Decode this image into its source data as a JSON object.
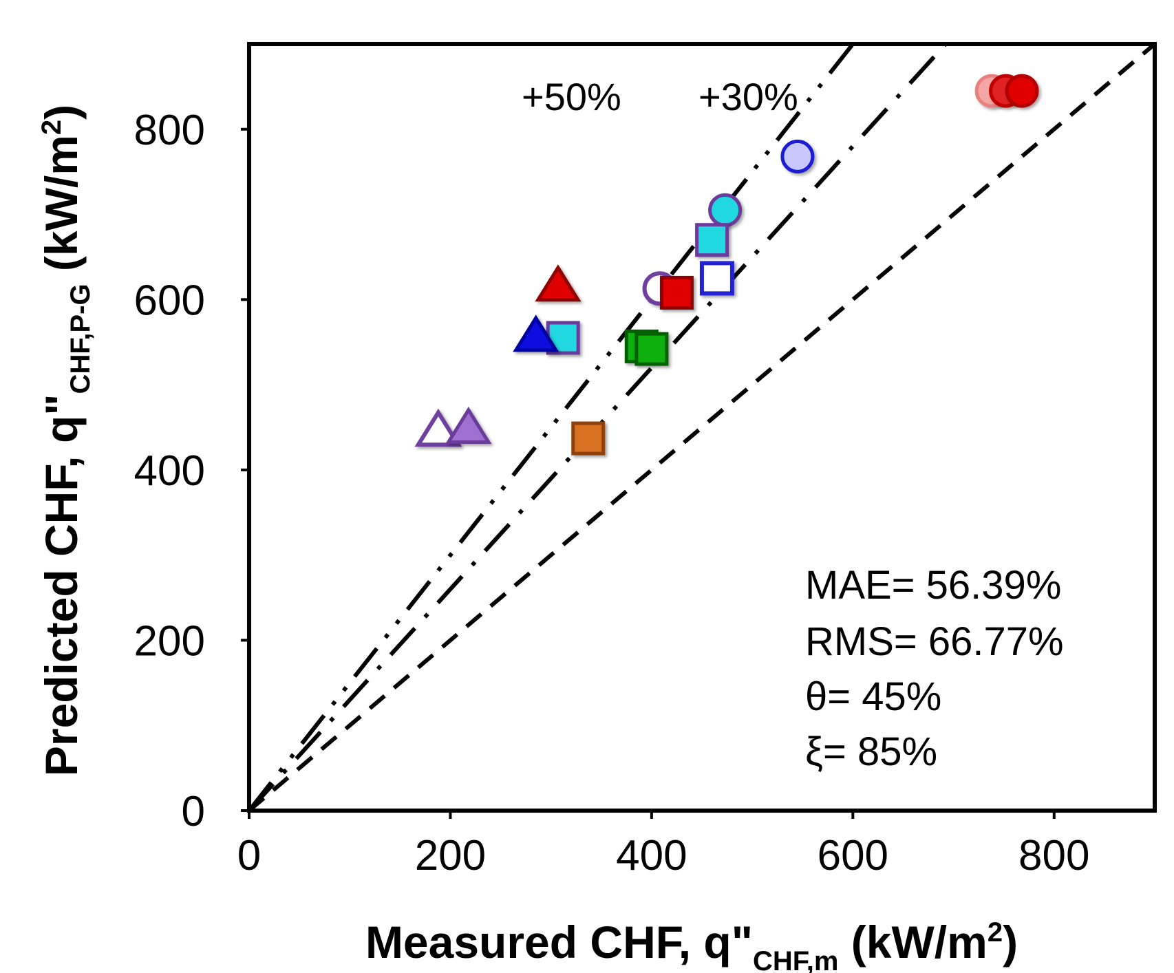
{
  "chart_data": {
    "type": "scatter",
    "xlabel": {
      "main": "Measured CHF, q\"",
      "sub": "CHF,m",
      "unit_pre": " (kW/m",
      "unit_sup": "2",
      "unit_post": ")"
    },
    "ylabel": {
      "main": "Predicted CHF, q\"",
      "sub": "CHF,P-G",
      "unit_pre": " (kW/m",
      "unit_sup": "2",
      "unit_post": ")"
    },
    "xlim": [
      0,
      900
    ],
    "ylim": [
      0,
      900
    ],
    "x_ticks": [
      0,
      200,
      400,
      600,
      800
    ],
    "y_ticks": [
      0,
      200,
      400,
      600,
      800
    ],
    "grid": false,
    "reference_lines": [
      {
        "slope": 1.0,
        "style": "dashed",
        "label": ""
      },
      {
        "slope": 1.3,
        "style": "dash-dot",
        "label": "+30%"
      },
      {
        "slope": 1.5,
        "style": "dash-dot-dot",
        "label": "+50%"
      }
    ],
    "stats": [
      "MAE= 56.39%",
      "RMS= 66.77%",
      "θ= 45%",
      "ξ= 85%"
    ],
    "points": [
      {
        "x": 738,
        "y": 845,
        "marker": "circle",
        "fill": "#f4a6a6",
        "stroke": "#e88080",
        "hollow": false
      },
      {
        "x": 752,
        "y": 845,
        "marker": "circle",
        "fill": "#e02020",
        "stroke": "#c00000",
        "hollow": false
      },
      {
        "x": 768,
        "y": 845,
        "marker": "circle",
        "fill": "#e00000",
        "stroke": "#b00000",
        "hollow": false
      },
      {
        "x": 545,
        "y": 768,
        "marker": "circle",
        "fill": "#c8c8ff",
        "stroke": "#1a1ad0",
        "hollow": false
      },
      {
        "x": 473,
        "y": 705,
        "marker": "circle",
        "fill": "#22d8e0",
        "stroke": "#6a3a9a",
        "hollow": false
      },
      {
        "x": 460,
        "y": 670,
        "marker": "square",
        "fill": "#22d8e0",
        "stroke": "#6a3a9a",
        "hollow": false
      },
      {
        "x": 465,
        "y": 625,
        "marker": "square",
        "fill": "#ffffff",
        "stroke": "#2020d0",
        "hollow": true
      },
      {
        "x": 408,
        "y": 613,
        "marker": "circle",
        "fill": "#ffffff",
        "stroke": "#7040a0",
        "hollow": true
      },
      {
        "x": 425,
        "y": 608,
        "marker": "square",
        "fill": "#e00000",
        "stroke": "#900000",
        "hollow": false
      },
      {
        "x": 307,
        "y": 617,
        "marker": "triangle",
        "fill": "#e00000",
        "stroke": "#900000",
        "hollow": false
      },
      {
        "x": 312,
        "y": 555,
        "marker": "square",
        "fill": "#22d8e0",
        "stroke": "#6a3a9a",
        "hollow": false
      },
      {
        "x": 285,
        "y": 558,
        "marker": "triangle",
        "fill": "#1010e0",
        "stroke": "#0000a0",
        "hollow": false
      },
      {
        "x": 390,
        "y": 545,
        "marker": "square",
        "fill": "#10b010",
        "stroke": "#006000",
        "hollow": false
      },
      {
        "x": 400,
        "y": 542,
        "marker": "square",
        "fill": "#10b010",
        "stroke": "#006000",
        "hollow": false
      },
      {
        "x": 188,
        "y": 447,
        "marker": "triangle",
        "fill": "#ffffff",
        "stroke": "#7040a0",
        "hollow": true
      },
      {
        "x": 218,
        "y": 450,
        "marker": "triangle",
        "fill": "#a070d0",
        "stroke": "#6a3a9a",
        "hollow": false
      },
      {
        "x": 337,
        "y": 437,
        "marker": "square",
        "fill": "#d87020",
        "stroke": "#904010",
        "hollow": false
      }
    ]
  }
}
